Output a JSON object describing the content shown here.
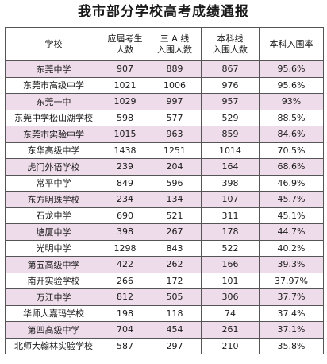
{
  "title": "我市部分学校高考成绩通报",
  "table": {
    "headers": [
      {
        "lines": [
          "学校"
        ]
      },
      {
        "lines": [
          "应届考生",
          "人数"
        ]
      },
      {
        "lines": [
          "三 A 线",
          "入围人数"
        ]
      },
      {
        "lines": [
          "本科线",
          "入围人数"
        ]
      },
      {
        "lines": [
          "本科入围率"
        ]
      }
    ],
    "rows": [
      [
        "东莞中学",
        "907",
        "889",
        "867",
        "95.6%"
      ],
      [
        "东莞市高级中学",
        "1021",
        "1006",
        "976",
        "95.6%"
      ],
      [
        "东莞一中",
        "1029",
        "997",
        "957",
        "93%"
      ],
      [
        "东莞中学松山湖学校",
        "598",
        "577",
        "529",
        "88.5%"
      ],
      [
        "东莞市实验中学",
        "1015",
        "963",
        "859",
        "84.6%"
      ],
      [
        "东华高级中学",
        "1438",
        "1251",
        "1014",
        "70.5%"
      ],
      [
        "虎门外语学校",
        "239",
        "204",
        "164",
        "68.6%"
      ],
      [
        "常平中学",
        "849",
        "596",
        "398",
        "46.9%"
      ],
      [
        "东方明珠学校",
        "234",
        "134",
        "107",
        "45.7%"
      ],
      [
        "石龙中学",
        "690",
        "521",
        "311",
        "45.1%"
      ],
      [
        "塘厦中学",
        "398",
        "267",
        "178",
        "44.7%"
      ],
      [
        "光明中学",
        "1298",
        "843",
        "522",
        "40.2%"
      ],
      [
        "第五高级中学",
        "422",
        "262",
        "166",
        "39.3%"
      ],
      [
        "南开实验学校",
        "266",
        "172",
        "101",
        "37.97%"
      ],
      [
        "万江中学",
        "812",
        "505",
        "306",
        "37.7%"
      ],
      [
        "华师大嘉玛学校",
        "198",
        "118",
        "74",
        "37.4%"
      ],
      [
        "第四高级中学",
        "704",
        "454",
        "261",
        "37.1%"
      ],
      [
        "北师大翰林实验学校",
        "587",
        "297",
        "210",
        "35.8%"
      ]
    ]
  },
  "colors": {
    "row_alt": "#efdcea",
    "row_plain": "#ffffff",
    "border": "#555555"
  }
}
